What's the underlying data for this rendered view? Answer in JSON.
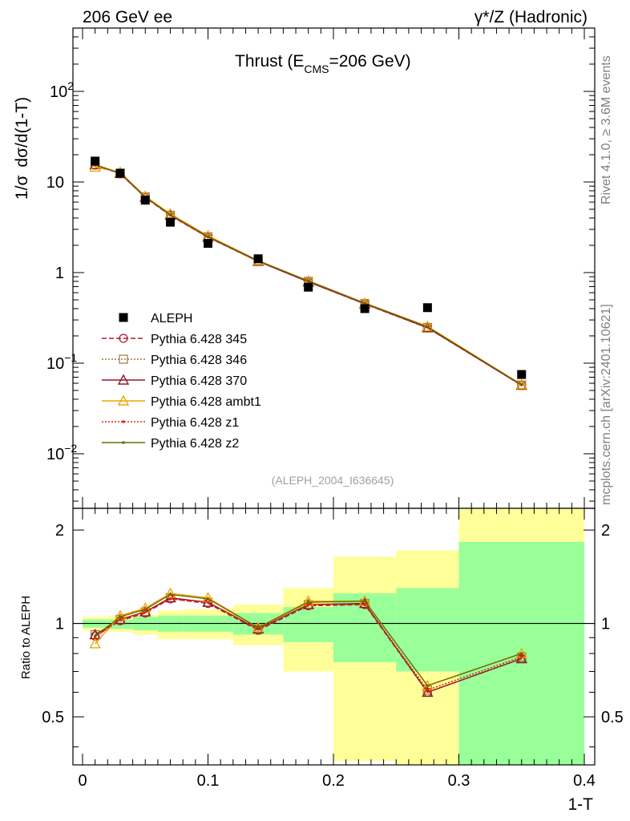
{
  "header": {
    "left": "206 GeV ee",
    "right": "γ*/Z (Hadronic)",
    "side_top": "Rivet 4.1.0, ≥ 3.6M events",
    "side_bottom": "mcplots.cern.ch [arXiv:2401.10621]"
  },
  "title": {
    "main": "Thrust (E",
    "sub": "CMS",
    "tail": "=206 GeV)"
  },
  "analysis_id": "(ALEPH_2004_I636645)",
  "colors": {
    "data": "#000000",
    "p345": "#b2182b",
    "p346": "#a0793d",
    "p370": "#8b1a2b",
    "ambt1": "#f0a500",
    "z1": "#e8201a",
    "z2": "#6b6b00",
    "band_inner": "#99ff99",
    "band_outer": "#ffff99"
  },
  "chart_data": [
    {
      "type": "line",
      "panel": "main",
      "title": "Thrust (ECMS=206 GeV)",
      "ylabel_parts": [
        "1/σ",
        "dσ/d(1-T)"
      ],
      "yscale": "log",
      "ylim": [
        0.0025,
        500
      ],
      "xlim": [
        -0.008,
        0.4
      ],
      "yticks": [
        {
          "v": 100,
          "label": "10",
          "exp": "2"
        },
        {
          "v": 10,
          "label": "10",
          "exp": ""
        },
        {
          "v": 1,
          "label": "1",
          "exp": ""
        },
        {
          "v": 0.1,
          "label": "10",
          "exp": "−1"
        },
        {
          "v": 0.01,
          "label": "10",
          "exp": "−2"
        }
      ],
      "x": [
        0.01,
        0.03,
        0.05,
        0.07,
        0.1,
        0.14,
        0.18,
        0.225,
        0.275,
        0.35
      ],
      "data": {
        "name": "ALEPH",
        "values": [
          17.0,
          12.5,
          6.3,
          3.6,
          2.1,
          1.42,
          0.69,
          0.4,
          0.41,
          0.075
        ]
      },
      "series": [
        {
          "name": "Pythia 6.428 345",
          "key": "p345",
          "marker": "circle",
          "dash": "6,3",
          "values": [
            15.4,
            12.3,
            6.75,
            4.25,
            2.45,
            1.33,
            0.79,
            0.45,
            0.245,
            0.057
          ]
        },
        {
          "name": "Pythia 6.428 346",
          "key": "p346",
          "marker": "square",
          "dash": "2,2",
          "values": [
            15.6,
            12.5,
            6.85,
            4.3,
            2.48,
            1.34,
            0.8,
            0.455,
            0.248,
            0.0575
          ]
        },
        {
          "name": "Pythia 6.428 370",
          "key": "p370",
          "marker": "triangle",
          "dash": "",
          "values": [
            15.5,
            12.4,
            6.8,
            4.3,
            2.46,
            1.33,
            0.79,
            0.452,
            0.246,
            0.057
          ]
        },
        {
          "name": "Pythia 6.428 ambt1",
          "key": "ambt1",
          "marker": "triangle",
          "dash": "",
          "values": [
            14.6,
            12.8,
            6.95,
            4.45,
            2.55,
            1.36,
            0.81,
            0.46,
            0.255,
            0.058
          ]
        },
        {
          "name": "Pythia 6.428 z1",
          "key": "z1",
          "marker": "dot",
          "dash": "2,2",
          "values": [
            15.3,
            12.4,
            6.8,
            4.3,
            2.47,
            1.34,
            0.8,
            0.455,
            0.25,
            0.0575
          ]
        },
        {
          "name": "Pythia 6.428 z2",
          "key": "z2",
          "marker": "dot",
          "dash": "",
          "values": [
            15.4,
            12.6,
            6.85,
            4.35,
            2.5,
            1.35,
            0.81,
            0.46,
            0.252,
            0.058
          ]
        }
      ]
    },
    {
      "type": "line",
      "panel": "ratio",
      "ylabel": "Ratio to ALEPH",
      "xlabel": "1-T",
      "yscale": "log",
      "ylim": [
        0.35,
        2.35
      ],
      "xlim": [
        -0.008,
        0.4
      ],
      "yticks": [
        {
          "v": 0.5,
          "label": "0.5"
        },
        {
          "v": 1,
          "label": "1"
        },
        {
          "v": 2,
          "label": "2"
        }
      ],
      "xticks": [
        {
          "v": 0,
          "label": "0"
        },
        {
          "v": 0.1,
          "label": "0.1"
        },
        {
          "v": 0.2,
          "label": "0.2"
        },
        {
          "v": 0.3,
          "label": "0.3"
        },
        {
          "v": 0.4,
          "label": "0.4"
        }
      ],
      "bands": [
        {
          "x0": 0.0,
          "x1": 0.02,
          "in_lo": 0.97,
          "in_hi": 1.03,
          "out_lo": 0.95,
          "out_hi": 1.05
        },
        {
          "x0": 0.02,
          "x1": 0.04,
          "in_lo": 0.96,
          "in_hi": 1.03,
          "out_lo": 0.94,
          "out_hi": 1.06
        },
        {
          "x0": 0.04,
          "x1": 0.06,
          "in_lo": 0.95,
          "in_hi": 1.05,
          "out_lo": 0.92,
          "out_hi": 1.07
        },
        {
          "x0": 0.06,
          "x1": 0.08,
          "in_lo": 0.94,
          "in_hi": 1.06,
          "out_lo": 0.89,
          "out_hi": 1.1
        },
        {
          "x0": 0.08,
          "x1": 0.12,
          "in_lo": 0.94,
          "in_hi": 1.06,
          "out_lo": 0.89,
          "out_hi": 1.11
        },
        {
          "x0": 0.12,
          "x1": 0.16,
          "in_lo": 0.92,
          "in_hi": 1.08,
          "out_lo": 0.85,
          "out_hi": 1.15
        },
        {
          "x0": 0.16,
          "x1": 0.2,
          "in_lo": 0.87,
          "in_hi": 1.13,
          "out_lo": 0.7,
          "out_hi": 1.3
        },
        {
          "x0": 0.2,
          "x1": 0.25,
          "in_lo": 0.75,
          "in_hi": 1.25,
          "out_lo": 0.36,
          "out_hi": 1.64
        },
        {
          "x0": 0.25,
          "x1": 0.3,
          "in_lo": 0.7,
          "in_hi": 1.3,
          "out_lo": 0.34,
          "out_hi": 1.72
        },
        {
          "x0": 0.3,
          "x1": 0.4,
          "in_lo": 0.35,
          "in_hi": 1.83,
          "out_lo": 0.35,
          "out_hi": 2.35
        }
      ],
      "x": [
        0.01,
        0.03,
        0.05,
        0.07,
        0.1,
        0.14,
        0.18,
        0.225,
        0.275,
        0.35
      ],
      "series": [
        {
          "key": "p345",
          "marker": "circle",
          "dash": "6,3",
          "values": [
            0.91,
            1.02,
            1.08,
            1.2,
            1.16,
            0.95,
            1.14,
            1.15,
            0.6,
            0.77
          ]
        },
        {
          "key": "p346",
          "marker": "square",
          "dash": "2,2",
          "values": [
            0.92,
            1.03,
            1.09,
            1.21,
            1.17,
            0.96,
            1.15,
            1.16,
            0.61,
            0.78
          ]
        },
        {
          "key": "p370",
          "marker": "triangle",
          "dash": "",
          "values": [
            0.92,
            1.03,
            1.09,
            1.21,
            1.17,
            0.96,
            1.15,
            1.16,
            0.6,
            0.77
          ]
        },
        {
          "key": "ambt1",
          "marker": "triangle",
          "dash": "",
          "values": [
            0.86,
            1.06,
            1.12,
            1.25,
            1.21,
            0.97,
            1.18,
            1.18,
            0.63,
            0.8
          ]
        },
        {
          "key": "z1",
          "marker": "dot",
          "dash": "2,2",
          "values": [
            0.9,
            1.03,
            1.09,
            1.2,
            1.17,
            0.96,
            1.15,
            1.15,
            0.61,
            0.78
          ]
        },
        {
          "key": "z2",
          "marker": "dot",
          "dash": "",
          "values": [
            0.91,
            1.05,
            1.11,
            1.24,
            1.2,
            0.97,
            1.17,
            1.18,
            0.63,
            0.8
          ]
        }
      ]
    }
  ]
}
